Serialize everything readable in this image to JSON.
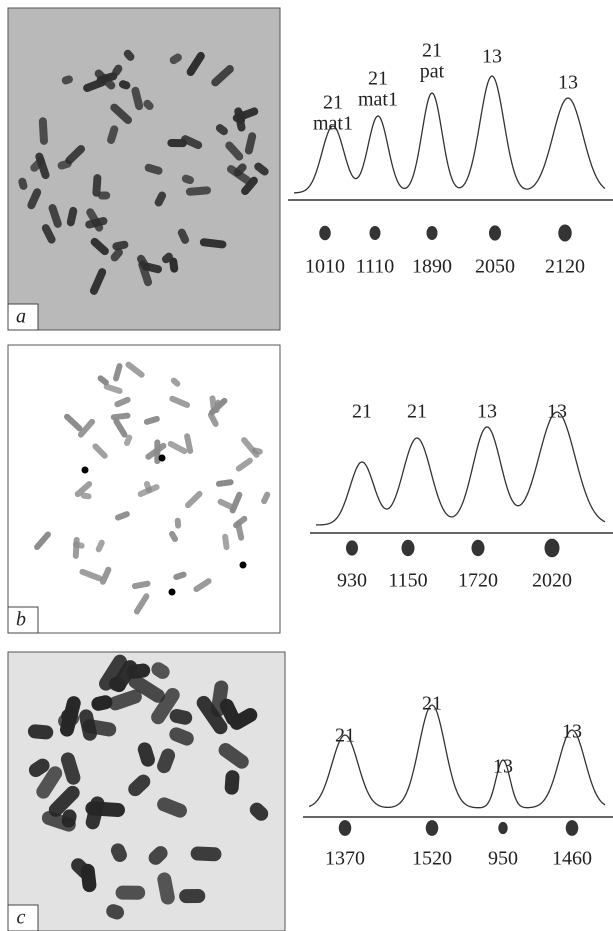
{
  "panels": [
    {
      "label": "a",
      "peaks": [
        {
          "label": [
            "21",
            "mat1"
          ],
          "value": 1010
        },
        {
          "label": [
            "21",
            "mat1"
          ],
          "value": 1110
        },
        {
          "label": [
            "21",
            "pat"
          ],
          "value": 1890
        },
        {
          "label": [
            "13"
          ],
          "value": 2050
        },
        {
          "label": [
            "13"
          ],
          "value": 2120
        }
      ]
    },
    {
      "label": "b",
      "peaks": [
        {
          "label": [
            "21"
          ],
          "value": 930
        },
        {
          "label": [
            "21"
          ],
          "value": 1150
        },
        {
          "label": [
            "13"
          ],
          "value": 1720
        },
        {
          "label": [
            "13"
          ],
          "value": 2020
        }
      ]
    },
    {
      "label": "c",
      "peaks": [
        {
          "label": [
            "21"
          ],
          "value": 1370
        },
        {
          "label": [
            "21"
          ],
          "value": 1520
        },
        {
          "label": [
            "13"
          ],
          "value": 950
        },
        {
          "label": [
            "13"
          ],
          "value": 1460
        }
      ]
    }
  ]
}
